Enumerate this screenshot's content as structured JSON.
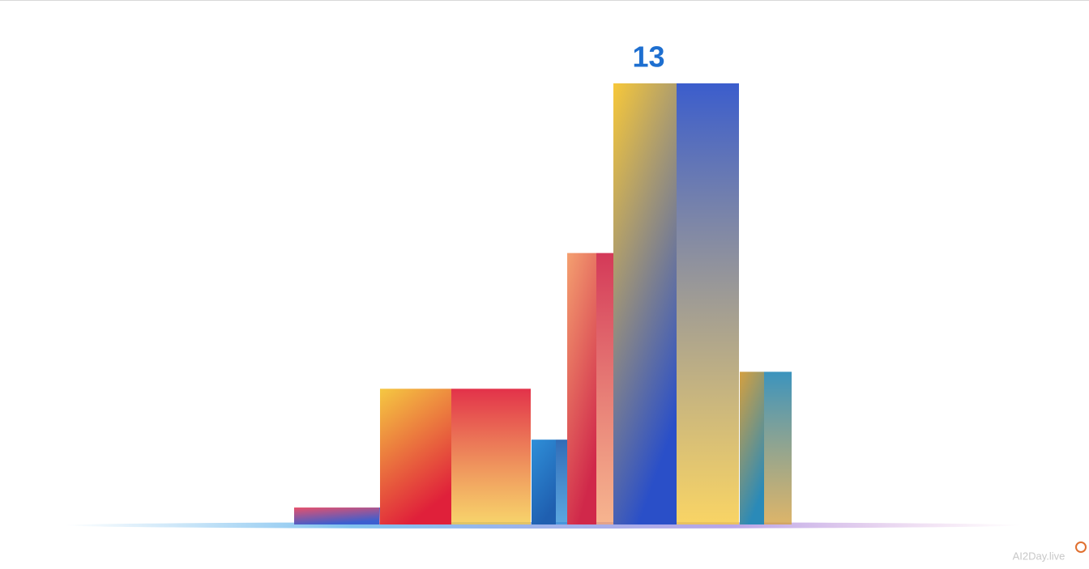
{
  "chart_data": {
    "type": "bar",
    "categories": [
      null,
      null,
      null,
      null,
      null,
      null
    ],
    "values": [
      0.5,
      4,
      2.5,
      8,
      13,
      4.5
    ],
    "colors": [
      [
        "#e8506a",
        "#3b5fd0"
      ],
      [
        "#f5c842",
        "#e0203a"
      ],
      [
        "#2f8fd8",
        "#1f5fb0"
      ],
      [
        "#f4a070",
        "#d0284a"
      ],
      [
        "#f7c83a",
        "#2a4fc8"
      ],
      [
        "#d4a040",
        "#2a8ab8"
      ]
    ],
    "label_index": 4,
    "watermark": "AI2Day.live"
  }
}
